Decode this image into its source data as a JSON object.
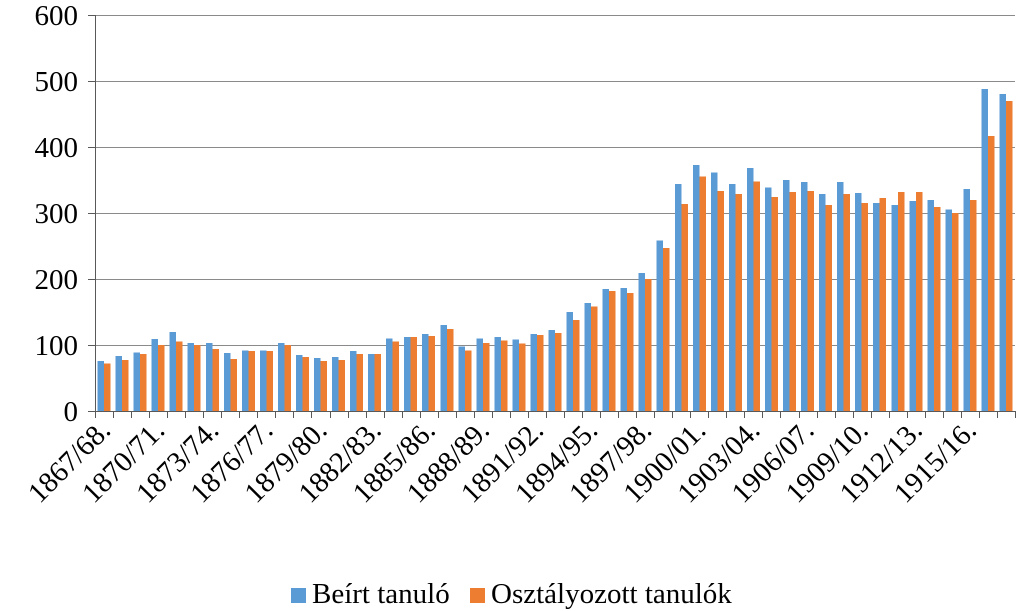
{
  "chart_data": {
    "type": "bar",
    "categories": [
      "1867/68.",
      "",
      "",
      "1870/71.",
      "",
      "",
      "1873/74.",
      "",
      "",
      "1876/77.",
      "",
      "",
      "1879/80.",
      "",
      "",
      "1882/83.",
      "",
      "",
      "1885/86.",
      "",
      "",
      "1888/89.",
      "",
      "",
      "1891/92.",
      "",
      "",
      "1894/95.",
      "",
      "",
      "1897/98.",
      "",
      "",
      "1900/01.",
      "",
      "",
      "1903/04.",
      "",
      "",
      "1906/07.",
      "",
      "",
      "1909/10.",
      "",
      "",
      "1912/13.",
      "",
      "",
      "1915/16.",
      "",
      ""
    ],
    "series": [
      {
        "name": "Beírt tanuló",
        "color": "#5B9BD5",
        "values": [
          76,
          83,
          89,
          109,
          120,
          103,
          103,
          88,
          92,
          92,
          103,
          85,
          80,
          82,
          91,
          86,
          110,
          112,
          117,
          130,
          98,
          110,
          112,
          108,
          117,
          123,
          150,
          164,
          185,
          186,
          209,
          258,
          344,
          373,
          361,
          344,
          368,
          339,
          350,
          347,
          329,
          347,
          330,
          315,
          312,
          318,
          320,
          305,
          336,
          488,
          480
        ]
      },
      {
        "name": "Osztályozott tanulók",
        "color": "#ED7D31",
        "values": [
          72,
          77,
          86,
          100,
          105,
          100,
          94,
          79,
          91,
          91,
          100,
          82,
          76,
          77,
          86,
          86,
          105,
          112,
          114,
          124,
          92,
          103,
          107,
          102,
          115,
          118,
          138,
          158,
          182,
          179,
          200,
          247,
          314,
          355,
          333,
          329,
          348,
          324,
          332,
          333,
          312,
          329,
          315,
          323,
          332,
          332,
          309,
          300,
          320,
          417,
          470
        ]
      }
    ],
    "ylim": [
      0,
      600
    ],
    "yticks": [
      0,
      100,
      200,
      300,
      400,
      500,
      600
    ],
    "grid": true,
    "legend": "bottom"
  }
}
